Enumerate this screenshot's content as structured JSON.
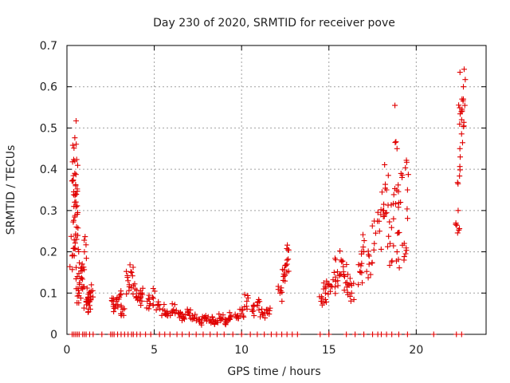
{
  "chart_data": {
    "type": "scatter",
    "title": "Day 230 of 2020, SRMTID for receiver pove",
    "xlabel": "GPS time / hours",
    "ylabel": "SRMTID / TECUs",
    "xlim": [
      0,
      24
    ],
    "ylim": [
      0,
      0.7
    ],
    "xticks": [
      0,
      5,
      10,
      15,
      20
    ],
    "yticks": [
      0,
      0.1,
      0.2,
      0.3,
      0.4,
      0.5,
      0.6,
      0.7
    ],
    "xtick_labels": [
      "0",
      "5",
      "10",
      "15",
      "20"
    ],
    "ytick_labels": [
      "0",
      "0.1",
      "0.2",
      "0.3",
      "0.4",
      "0.5",
      "0.6",
      "0.7"
    ],
    "grid": true,
    "marker": "+",
    "color": "#e00000",
    "series": [
      {
        "name": "SRMTID",
        "x": [
          0.3,
          0.4,
          0.45,
          0.5,
          0.55,
          0.6,
          0.7,
          0.8,
          0.9,
          1.0,
          1.1,
          1.2,
          1.3,
          1.4,
          2.6,
          2.8,
          3.0,
          3.2,
          3.5,
          3.7,
          3.9,
          4.1,
          4.3,
          4.6,
          4.9,
          5.2,
          5.5,
          5.8,
          6.1,
          6.4,
          6.7,
          7.0,
          7.3,
          7.6,
          7.9,
          8.2,
          8.5,
          8.8,
          9.1,
          9.4,
          9.7,
          10.0,
          10.3,
          10.6,
          10.9,
          11.2,
          11.5,
          12.2,
          12.4,
          12.6,
          14.6,
          14.8,
          15.0,
          15.3,
          15.5,
          15.7,
          15.9,
          16.1,
          16.3,
          16.8,
          17.0,
          17.3,
          17.6,
          17.9,
          18.1,
          18.3,
          18.5,
          18.7,
          18.9,
          19.1,
          19.3,
          19.5,
          22.4,
          22.5,
          22.6,
          22.7,
          0.45,
          0.5,
          0.55,
          12.6,
          18.9,
          22.7
        ],
        "y": [
          0.19,
          0.31,
          0.42,
          0.36,
          0.23,
          0.14,
          0.1,
          0.16,
          0.11,
          0.2,
          0.08,
          0.09,
          0.07,
          0.12,
          0.08,
          0.07,
          0.09,
          0.06,
          0.13,
          0.15,
          0.11,
          0.09,
          0.1,
          0.08,
          0.09,
          0.07,
          0.06,
          0.05,
          0.06,
          0.05,
          0.04,
          0.05,
          0.04,
          0.03,
          0.04,
          0.035,
          0.03,
          0.04,
          0.03,
          0.045,
          0.04,
          0.05,
          0.08,
          0.06,
          0.07,
          0.05,
          0.06,
          0.1,
          0.14,
          0.17,
          0.08,
          0.1,
          0.12,
          0.15,
          0.13,
          0.18,
          0.14,
          0.12,
          0.1,
          0.15,
          0.2,
          0.17,
          0.22,
          0.25,
          0.3,
          0.35,
          0.22,
          0.28,
          0.2,
          0.32,
          0.18,
          0.35,
          0.3,
          0.45,
          0.52,
          0.6,
          0.39,
          0.34,
          0.26,
          0.18,
          0.45,
          0.57
        ],
        "baseline_x": [
          0.3,
          0.4,
          0.5,
          0.6,
          0.7,
          0.9,
          1.0,
          1.1,
          1.3,
          1.5,
          2.0,
          2.5,
          2.6,
          2.7,
          2.9,
          3.1,
          3.3,
          3.5,
          3.7,
          3.8,
          4.0,
          4.2,
          4.5,
          4.8,
          5.3,
          5.6,
          5.9,
          6.3,
          6.6,
          7.0,
          7.4,
          7.8,
          8.2,
          8.6,
          9.0,
          9.5,
          10.0,
          10.5,
          10.9,
          11.3,
          11.7,
          12.0,
          12.3,
          12.6,
          12.9,
          13.2,
          14.5,
          15.0,
          16.0,
          16.5,
          17.0,
          17.5,
          17.8,
          18.0,
          18.3,
          18.6,
          19.0,
          19.5,
          21.0,
          22.3,
          22.6
        ]
      }
    ]
  }
}
